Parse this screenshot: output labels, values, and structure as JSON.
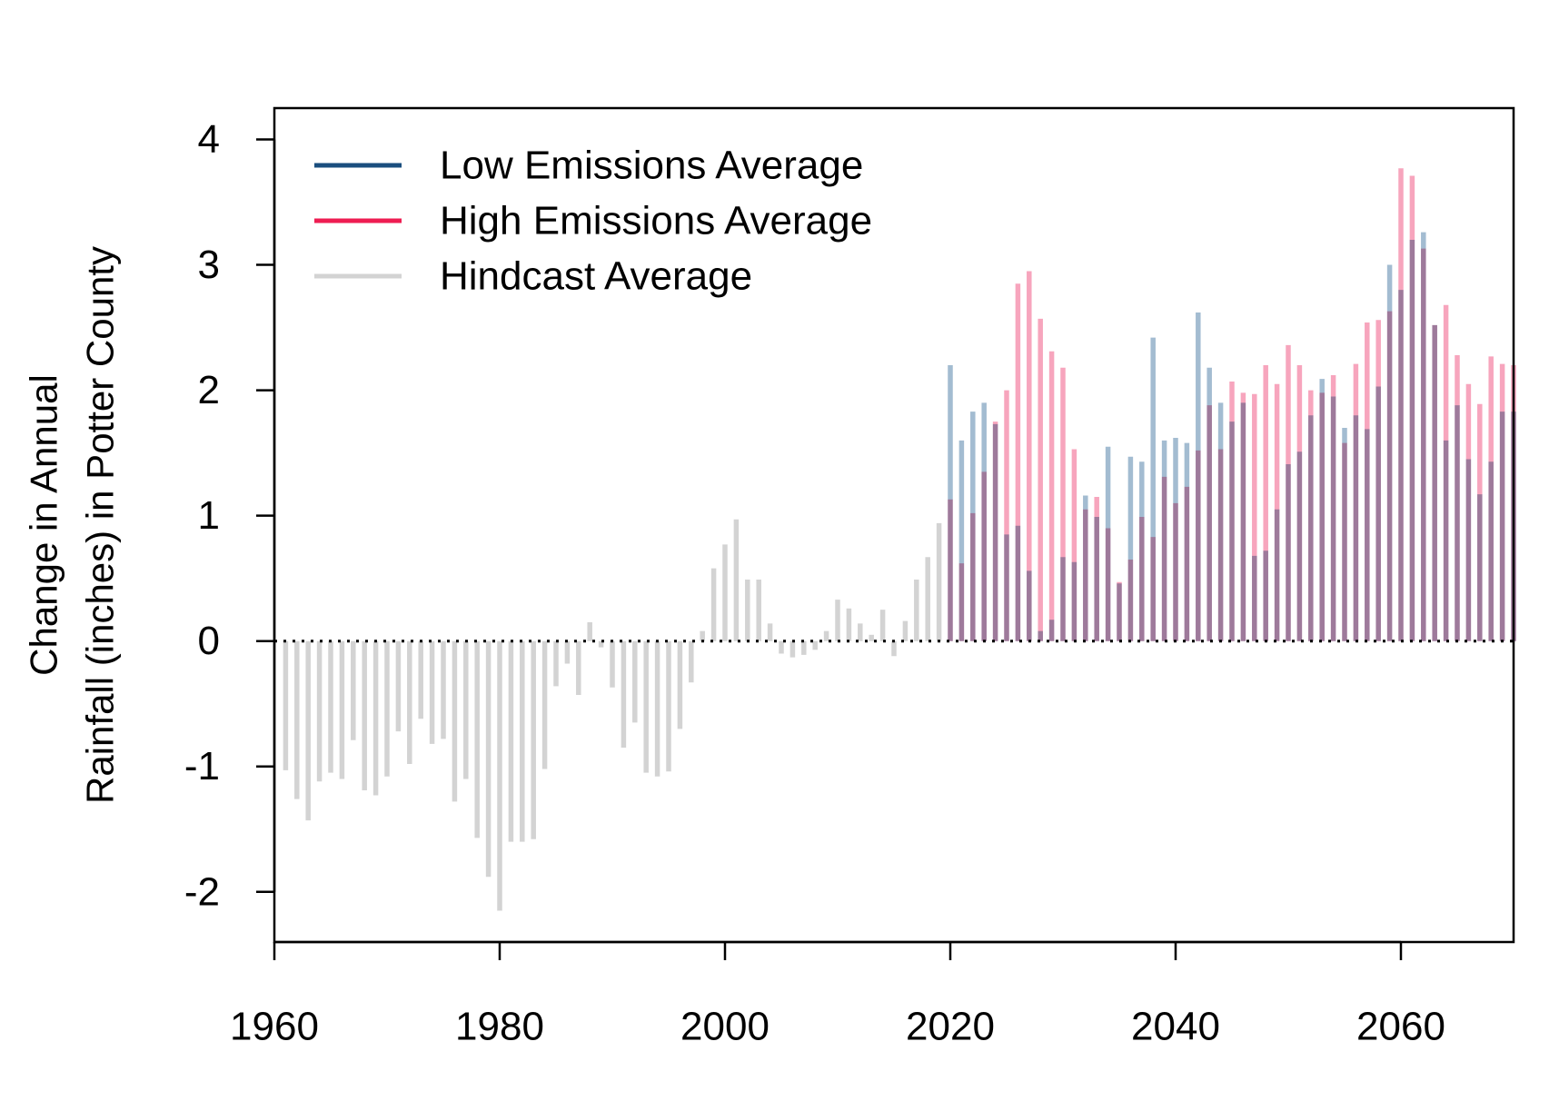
{
  "chart_data": {
    "type": "bar",
    "title": "",
    "xlabel": "",
    "ylabel": [
      "Change in Annual",
      "Rainfall (inches) in Potter County"
    ],
    "xlim": [
      1960,
      2070
    ],
    "ylim": [
      -2.4,
      4.25
    ],
    "xticks": [
      1960,
      1980,
      2000,
      2020,
      2040,
      2060
    ],
    "yticks": [
      -2,
      -1,
      0,
      1,
      2,
      3,
      4
    ],
    "reference_line": 0,
    "legend_position": "top-left",
    "grid": false,
    "series": [
      {
        "name": "Low Emissions Average",
        "legend_color": "#1a4e7e",
        "bar_color": "#a3bcd1",
        "x": [
          2020,
          2021,
          2022,
          2023,
          2024,
          2025,
          2026,
          2027,
          2028,
          2029,
          2030,
          2031,
          2032,
          2033,
          2034,
          2035,
          2036,
          2037,
          2038,
          2039,
          2040,
          2041,
          2042,
          2043,
          2044,
          2045,
          2046,
          2047,
          2048,
          2049,
          2050,
          2051,
          2052,
          2053,
          2054,
          2055,
          2056,
          2057,
          2058,
          2059,
          2060,
          2061,
          2062,
          2063,
          2064,
          2065,
          2066,
          2067,
          2068,
          2069,
          2070
        ],
        "values": [
          2.2,
          1.6,
          1.83,
          1.9,
          1.73,
          0.85,
          0.92,
          0.56,
          0.08,
          0.17,
          0.67,
          0.63,
          1.16,
          0.99,
          1.55,
          0.46,
          1.47,
          1.43,
          2.42,
          1.6,
          1.62,
          1.58,
          2.62,
          2.18,
          1.9,
          1.75,
          1.9,
          0.68,
          0.72,
          1.05,
          1.41,
          1.51,
          1.8,
          2.09,
          1.95,
          1.7,
          1.8,
          1.69,
          2.03,
          3.0,
          2.8,
          3.2,
          3.26,
          2.52,
          1.6,
          1.88,
          1.45,
          1.17,
          1.43,
          1.83,
          1.83
        ]
      },
      {
        "name": "High Emissions Average",
        "legend_color": "#ee1d52",
        "bar_color": "#f7a5bd",
        "x": [
          2020,
          2021,
          2022,
          2023,
          2024,
          2025,
          2026,
          2027,
          2028,
          2029,
          2030,
          2031,
          2032,
          2033,
          2034,
          2035,
          2036,
          2037,
          2038,
          2039,
          2040,
          2041,
          2042,
          2043,
          2044,
          2045,
          2046,
          2047,
          2048,
          2049,
          2050,
          2051,
          2052,
          2053,
          2054,
          2055,
          2056,
          2057,
          2058,
          2059,
          2060,
          2061,
          2062,
          2063,
          2064,
          2065,
          2066,
          2067,
          2068,
          2069,
          2070
        ],
        "values": [
          1.13,
          0.62,
          1.02,
          1.35,
          1.75,
          2.0,
          2.85,
          2.95,
          2.57,
          2.31,
          2.18,
          1.53,
          1.05,
          1.15,
          0.9,
          0.47,
          0.65,
          0.99,
          0.83,
          1.31,
          1.1,
          1.23,
          1.52,
          1.88,
          1.53,
          2.07,
          1.98,
          1.97,
          2.2,
          2.05,
          2.36,
          2.2,
          2.0,
          1.98,
          2.12,
          1.58,
          2.21,
          2.54,
          2.56,
          2.63,
          3.77,
          3.71,
          3.13,
          2.52,
          2.68,
          2.28,
          2.05,
          1.89,
          2.27,
          2.21,
          2.2
        ]
      },
      {
        "name": "Hindcast Average",
        "legend_color": "#d3d3d3",
        "bar_color": "#d3d3d3",
        "x": [
          1961,
          1962,
          1963,
          1964,
          1965,
          1966,
          1967,
          1968,
          1969,
          1970,
          1971,
          1972,
          1973,
          1974,
          1975,
          1976,
          1977,
          1978,
          1979,
          1980,
          1981,
          1982,
          1983,
          1984,
          1985,
          1986,
          1987,
          1988,
          1989,
          1990,
          1991,
          1992,
          1993,
          1994,
          1995,
          1996,
          1997,
          1998,
          1999,
          2000,
          2001,
          2002,
          2003,
          2004,
          2005,
          2006,
          2007,
          2008,
          2009,
          2010,
          2011,
          2012,
          2013,
          2014,
          2015,
          2016,
          2017,
          2018,
          2019
        ],
        "values": [
          -1.03,
          -1.26,
          -1.43,
          -1.12,
          -1.05,
          -1.1,
          -0.79,
          -1.19,
          -1.23,
          -1.08,
          -0.72,
          -0.98,
          -0.62,
          -0.82,
          -0.78,
          -1.28,
          -1.1,
          -1.57,
          -1.88,
          -2.15,
          -1.6,
          -1.6,
          -1.58,
          -1.02,
          -0.36,
          -0.18,
          -0.43,
          0.15,
          -0.05,
          -0.37,
          -0.85,
          -0.65,
          -1.05,
          -1.08,
          -1.04,
          -0.7,
          -0.33,
          0.08,
          0.58,
          0.77,
          0.97,
          0.49,
          0.49,
          0.14,
          -0.1,
          -0.13,
          -0.11,
          -0.07,
          0.08,
          0.33,
          0.26,
          0.14,
          0.05,
          0.25,
          -0.12,
          0.16,
          0.49,
          0.67,
          0.94
        ]
      }
    ]
  }
}
